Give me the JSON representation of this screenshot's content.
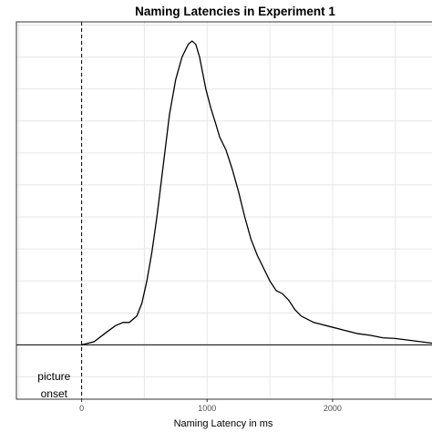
{
  "chart_data": {
    "type": "line",
    "title": "Naming Latencies in Experiment 1",
    "xlabel": "Naming Latency in ms",
    "ylabel": "",
    "xlim": [
      -520,
      2800
    ],
    "ylim": [
      -0.00017,
      0.00101
    ],
    "x_ticks": [
      0,
      1000,
      2000
    ],
    "x_tick_labels": [
      "0",
      "1000",
      "2000"
    ],
    "grid": true,
    "series": [
      {
        "x": [
          0,
          100,
          200,
          270,
          330,
          380,
          440,
          480,
          520,
          560,
          600,
          650,
          700,
          750,
          800,
          850,
          880,
          910,
          940,
          960,
          990,
          1030,
          1070,
          1100,
          1150,
          1200,
          1250,
          1300,
          1350,
          1400,
          1450,
          1500,
          1550,
          1600,
          1650,
          1700,
          1750,
          1800,
          1850,
          1900,
          1950,
          2000,
          2100,
          2200,
          2300,
          2400,
          2500,
          2600,
          2700,
          2800
        ],
        "y": [
          0.0,
          1e-05,
          4e-05,
          6e-05,
          7e-05,
          7e-05,
          9e-05,
          0.00013,
          0.0002,
          0.00029,
          0.0004,
          0.00056,
          0.00072,
          0.00083,
          0.0009,
          0.00094,
          0.00095,
          0.00094,
          0.0009,
          0.00086,
          0.0008,
          0.00074,
          0.00069,
          0.00065,
          0.00061,
          0.00055,
          0.00048,
          0.0004,
          0.00033,
          0.00028,
          0.00024,
          0.0002,
          0.00017,
          0.00016,
          0.00014,
          0.00011,
          9e-05,
          8e-05,
          7e-05,
          6.5e-05,
          6e-05,
          5.5e-05,
          4.5e-05,
          3.5e-05,
          3e-05,
          2.2e-05,
          2e-05,
          1.5e-05,
          1e-05,
          5e-06
        ]
      }
    ],
    "vline": {
      "x": 0,
      "style": "dashed"
    },
    "hline": {
      "y": 0
    },
    "annotation": {
      "lines": [
        "picture",
        "onset"
      ],
      "x": -220,
      "y": -0.00011
    }
  }
}
